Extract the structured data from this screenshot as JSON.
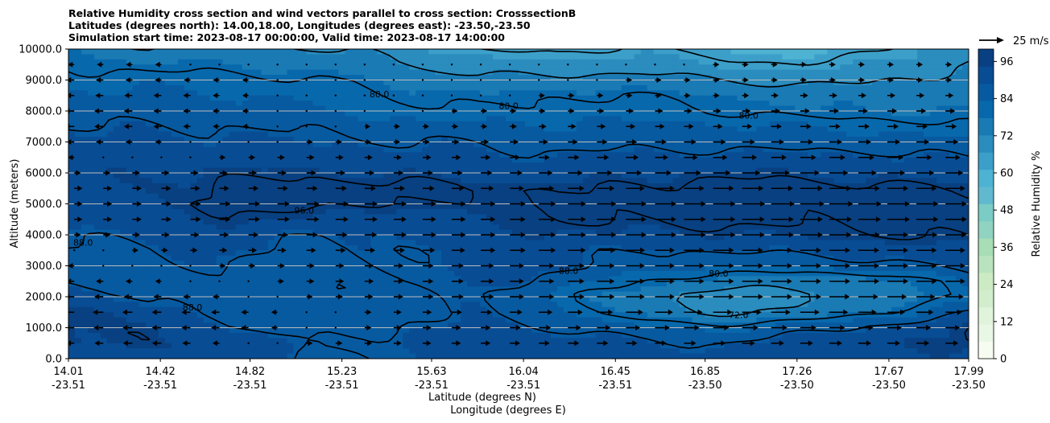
{
  "chart_data": {
    "type": "contour",
    "title_lines": [
      "Relative Humidity cross section and wind vectors parallel to cross section: CrosssectionB",
      "Latitudes (degrees north): 14.00,18.00, Longitudes (degrees east): -23.50,-23.50",
      "Simulation start time: 2023-08-17 00:00:00, Valid time: 2023-08-17 14:00:00"
    ],
    "ylabel": "Altitude (meters)",
    "xlabel_line1": "Latitude (degrees N)",
    "xlabel_line2": "Longitude (degrees E)",
    "ylim": [
      0,
      10000
    ],
    "y_ticks": [
      "0.0",
      "1000.0",
      "2000.0",
      "3000.0",
      "4000.0",
      "5000.0",
      "6000.0",
      "7000.0",
      "8000.0",
      "9000.0",
      "10000.0"
    ],
    "x_ticks": [
      {
        "lat": "14.01",
        "lon": "-23.51"
      },
      {
        "lat": "14.42",
        "lon": "-23.51"
      },
      {
        "lat": "14.82",
        "lon": "-23.51"
      },
      {
        "lat": "15.23",
        "lon": "-23.51"
      },
      {
        "lat": "15.63",
        "lon": "-23.51"
      },
      {
        "lat": "16.04",
        "lon": "-23.51"
      },
      {
        "lat": "16.45",
        "lon": "-23.51"
      },
      {
        "lat": "16.85",
        "lon": "-23.50"
      },
      {
        "lat": "17.26",
        "lon": "-23.50"
      },
      {
        "lat": "17.67",
        "lon": "-23.50"
      },
      {
        "lat": "17.99",
        "lon": "-23.50"
      }
    ],
    "grid": "horizontal",
    "colorbar": {
      "label": "Relative Humidity %",
      "ticks": [
        "0",
        "12",
        "24",
        "36",
        "48",
        "60",
        "72",
        "84",
        "96"
      ],
      "min": 0,
      "max": 100,
      "colors": [
        "#f7fcf0",
        "#e9f7e5",
        "#e0f3db",
        "#d1edcb",
        "#ccebc5",
        "#b9e3bd",
        "#a8ddb5",
        "#8fd3c0",
        "#7bccc4",
        "#61b9d0",
        "#4eb3d3",
        "#3c9fc9",
        "#2b8cbe",
        "#1a7ab4",
        "#0868ac",
        "#075aa0",
        "#084c94",
        "#084081"
      ]
    },
    "contour_levels": [
      "64.0",
      "72.0",
      "80.0",
      "88.0",
      "96.0"
    ],
    "quiver_key": "25 m/s",
    "rh_rows": [
      {
        "alt": 0,
        "values": [
          92,
          92,
          90,
          86,
          89,
          90,
          91,
          91,
          92,
          91,
          92,
          93
        ]
      },
      {
        "alt": 500,
        "values": [
          94,
          95,
          92,
          88,
          90,
          91,
          92,
          89,
          88,
          92,
          94,
          96
        ]
      },
      {
        "alt": 1000,
        "values": [
          96,
          94,
          88,
          86,
          88,
          90,
          88,
          84,
          82,
          86,
          90,
          95
        ]
      },
      {
        "alt": 1500,
        "values": [
          97,
          90,
          86,
          86,
          87,
          88,
          84,
          76,
          70,
          74,
          80,
          88
        ]
      },
      {
        "alt": 2000,
        "values": [
          93,
          86,
          86,
          86,
          87,
          88,
          82,
          74,
          68,
          70,
          74,
          82
        ]
      },
      {
        "alt": 2500,
        "values": [
          88,
          86,
          87,
          86,
          88,
          90,
          86,
          80,
          76,
          74,
          76,
          84
        ]
      },
      {
        "alt": 3000,
        "values": [
          86,
          87,
          88,
          85,
          88,
          92,
          90,
          86,
          84,
          84,
          86,
          90
        ]
      },
      {
        "alt": 3500,
        "values": [
          87,
          88,
          90,
          86,
          88,
          91,
          90,
          88,
          88,
          90,
          92,
          94
        ]
      },
      {
        "alt": 4000,
        "values": [
          88,
          90,
          92,
          88,
          89,
          93,
          94,
          94,
          94,
          95,
          96,
          97
        ]
      },
      {
        "alt": 4500,
        "values": [
          90,
          92,
          95,
          94,
          91,
          94,
          96,
          97,
          97,
          97,
          97,
          98
        ]
      },
      {
        "alt": 5000,
        "values": [
          92,
          94,
          97,
          98,
          95,
          96,
          96,
          98,
          98,
          98,
          98,
          98
        ]
      },
      {
        "alt": 5500,
        "values": [
          93,
          95,
          97,
          98,
          97,
          97,
          95,
          97,
          98,
          98,
          97,
          96
        ]
      },
      {
        "alt": 6000,
        "values": [
          93,
          94,
          95,
          95,
          94,
          93,
          92,
          94,
          95,
          94,
          93,
          92
        ]
      },
      {
        "alt": 6500,
        "values": [
          91,
          92,
          92,
          91,
          90,
          90,
          89,
          90,
          90,
          90,
          89,
          88
        ]
      },
      {
        "alt": 7000,
        "values": [
          90,
          90,
          90,
          89,
          88,
          88,
          86,
          86,
          86,
          86,
          86,
          84
        ]
      },
      {
        "alt": 7500,
        "values": [
          88,
          88,
          88,
          87,
          85,
          84,
          84,
          84,
          84,
          83,
          82,
          80
        ]
      },
      {
        "alt": 8000,
        "values": [
          86,
          86,
          86,
          84,
          82,
          80,
          82,
          82,
          80,
          78,
          78,
          77
        ]
      },
      {
        "alt": 8500,
        "values": [
          84,
          84,
          84,
          82,
          80,
          78,
          80,
          80,
          78,
          75,
          76,
          76
        ]
      },
      {
        "alt": 9000,
        "values": [
          82,
          82,
          82,
          80,
          78,
          74,
          74,
          74,
          72,
          70,
          72,
          74
        ]
      },
      {
        "alt": 9500,
        "values": [
          80,
          78,
          78,
          76,
          72,
          68,
          68,
          70,
          66,
          64,
          68,
          72
        ]
      },
      {
        "alt": 10000,
        "values": [
          78,
          72,
          74,
          72,
          70,
          64,
          62,
          66,
          60,
          58,
          64,
          70
        ]
      }
    ],
    "wind_rows": [
      {
        "alt": 500,
        "u": [
          -2,
          -3,
          -1,
          1,
          2,
          3,
          4,
          4,
          5,
          5,
          5,
          5
        ]
      },
      {
        "alt": 1000,
        "u": [
          -3,
          -3,
          -2,
          0,
          2,
          3,
          5,
          6,
          7,
          7,
          6,
          6
        ]
      },
      {
        "alt": 1500,
        "u": [
          -4,
          -3,
          -2,
          0,
          2,
          4,
          6,
          8,
          9,
          9,
          8,
          7
        ]
      },
      {
        "alt": 2000,
        "u": [
          -3,
          -2,
          -1,
          1,
          3,
          5,
          7,
          9,
          10,
          10,
          9,
          8
        ]
      },
      {
        "alt": 2500,
        "u": [
          -2,
          -1,
          0,
          2,
          3,
          5,
          7,
          9,
          10,
          10,
          10,
          9
        ]
      },
      {
        "alt": 3000,
        "u": [
          -1,
          0,
          1,
          2,
          3,
          5,
          7,
          9,
          10,
          10,
          10,
          9
        ]
      },
      {
        "alt": 3500,
        "u": [
          0,
          1,
          2,
          3,
          4,
          6,
          8,
          9,
          10,
          10,
          10,
          9
        ]
      },
      {
        "alt": 4000,
        "u": [
          1,
          2,
          3,
          4,
          5,
          6,
          8,
          10,
          11,
          11,
          10,
          10
        ]
      },
      {
        "alt": 4500,
        "u": [
          2,
          3,
          4,
          5,
          5,
          6,
          8,
          10,
          11,
          11,
          11,
          10
        ]
      },
      {
        "alt": 5000,
        "u": [
          2,
          3,
          4,
          5,
          5,
          6,
          8,
          10,
          11,
          12,
          11,
          10
        ]
      },
      {
        "alt": 5500,
        "u": [
          2,
          3,
          3,
          4,
          4,
          5,
          7,
          9,
          10,
          11,
          10,
          9
        ]
      },
      {
        "alt": 6000,
        "u": [
          1,
          2,
          2,
          3,
          3,
          4,
          6,
          7,
          8,
          9,
          8,
          8
        ]
      },
      {
        "alt": 6500,
        "u": [
          -1,
          0,
          1,
          2,
          2,
          3,
          4,
          5,
          6,
          7,
          7,
          6
        ]
      },
      {
        "alt": 7000,
        "u": [
          -2,
          -1,
          0,
          1,
          1,
          2,
          3,
          4,
          5,
          5,
          5,
          5
        ]
      },
      {
        "alt": 7500,
        "u": [
          -3,
          -2,
          -1,
          0,
          1,
          1,
          2,
          3,
          3,
          4,
          4,
          4
        ]
      },
      {
        "alt": 8000,
        "u": [
          -3,
          -2,
          -1,
          0,
          0,
          1,
          1,
          2,
          2,
          3,
          3,
          3
        ]
      },
      {
        "alt": 8500,
        "u": [
          -2,
          -2,
          -1,
          0,
          0,
          0,
          1,
          1,
          1,
          2,
          2,
          2
        ]
      },
      {
        "alt": 9000,
        "u": [
          -2,
          -1,
          -1,
          0,
          0,
          0,
          0,
          1,
          1,
          1,
          1,
          1
        ]
      },
      {
        "alt": 9500,
        "u": [
          -1,
          -1,
          0,
          0,
          0,
          0,
          0,
          0,
          1,
          1,
          1,
          1
        ]
      }
    ]
  }
}
